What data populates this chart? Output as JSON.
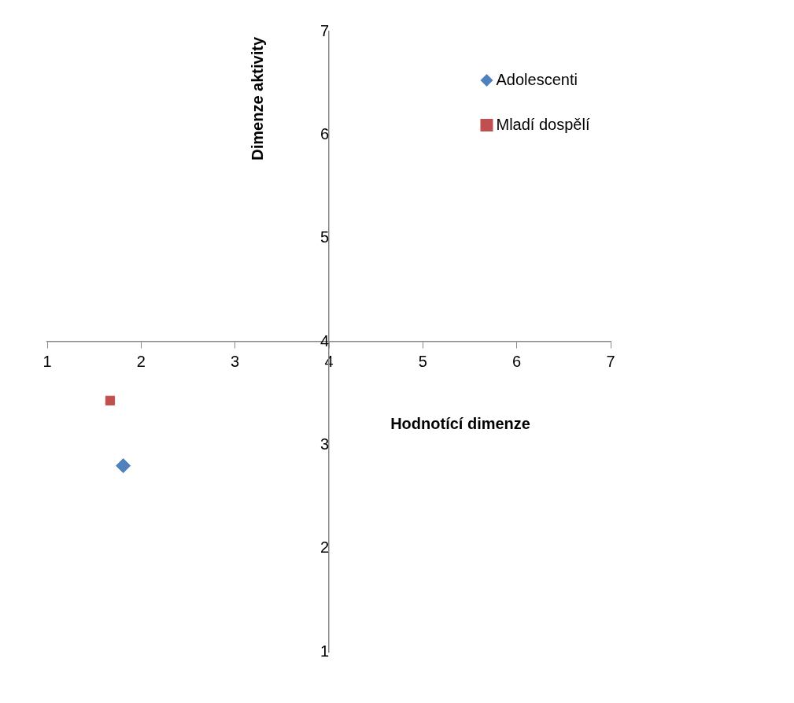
{
  "chart_data": {
    "type": "scatter",
    "xlabel": "Hodnotící dimenze",
    "ylabel": "Dimenze aktivity",
    "xlim": [
      1,
      7
    ],
    "xticks": [
      1,
      2,
      3,
      4,
      5,
      6,
      7
    ],
    "ylim": [
      1,
      7
    ],
    "yticks": [
      1,
      2,
      3,
      4,
      5,
      6,
      7
    ],
    "grid": false,
    "legend": "top right",
    "series": [
      {
        "name": "Adolescenti",
        "color": "#4f81bd",
        "marker": "diamond",
        "x": [
          1.81
        ],
        "values": [
          2.8
        ]
      },
      {
        "name": "Mladí dospělí",
        "color": "#c0504d",
        "marker": "square",
        "x": [
          1.67
        ],
        "values": [
          3.43
        ]
      }
    ]
  }
}
